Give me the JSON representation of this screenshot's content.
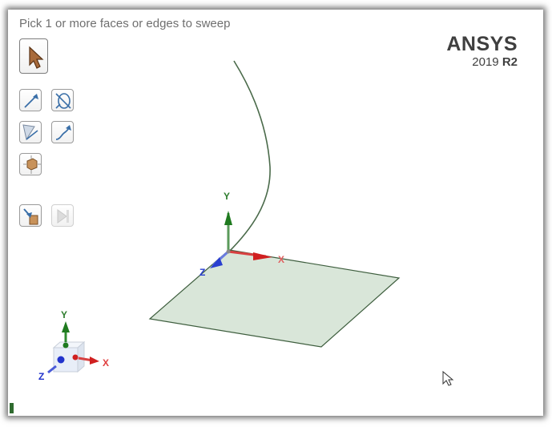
{
  "prompt": {
    "text": "Pick 1 or more faces or edges to sweep"
  },
  "brand": {
    "name": "ANSYS",
    "year": "2019",
    "release": "R2"
  },
  "toolbar": {
    "select_mode": "select-pointer-icon",
    "tools": [
      "select-direction-icon",
      "select-no-twist-icon",
      "select-sweep-face-icon",
      "select-trajectory-icon",
      "select-body-icon",
      "full-sweep-icon",
      "complete-icon"
    ]
  },
  "triad": {
    "x": "X",
    "y": "Y",
    "z": "Z"
  },
  "colors": {
    "sheet_fill": "#d9e6d9",
    "sheet_edge": "#3e5e3e",
    "x_axis": "#e03030",
    "y_axis": "#2e8b2e",
    "z_axis": "#2a3fd0"
  }
}
